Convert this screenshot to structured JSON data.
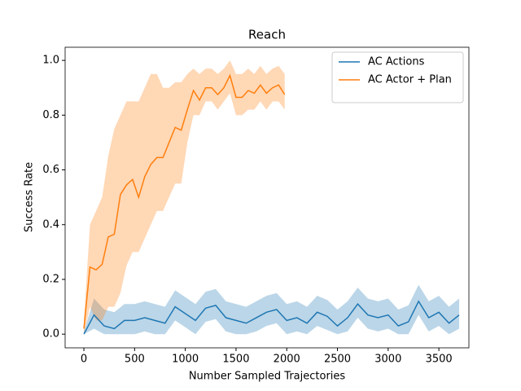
{
  "chart_data": {
    "type": "line",
    "title": "Reach",
    "x_label": "Number Sampled Trajectories",
    "y_label": "Success Rate",
    "xlim": [
      -185,
      3796
    ],
    "ylim": [
      -0.05,
      1.048
    ],
    "xticks": [
      0,
      500,
      1000,
      1500,
      2000,
      2500,
      3000,
      3500
    ],
    "yticks": [
      {
        "value": 0,
        "label": "0.0"
      },
      0.2,
      0.4,
      0.6,
      0.8,
      {
        "value": 1,
        "label": "1.0"
      }
    ],
    "legend": "upper right",
    "grid": false,
    "series": [
      {
        "name": "AC Actions",
        "color": "#1f77b4",
        "x": [
          0,
          100,
          200,
          300,
          400,
          500,
          600,
          700,
          800,
          900,
          1000,
          1100,
          1200,
          1300,
          1400,
          1500,
          1600,
          1700,
          1800,
          1900,
          2000,
          2100,
          2200,
          2300,
          2400,
          2500,
          2600,
          2700,
          2800,
          2900,
          3000,
          3100,
          3200,
          3300,
          3400,
          3500,
          3600,
          3700
        ],
        "values": [
          0,
          0.07,
          0.03,
          0.02,
          0.05,
          0.05,
          0.06,
          0.05,
          0.04,
          0.1,
          0.075,
          0.05,
          0.095,
          0.105,
          0.06,
          0.05,
          0.04,
          0.06,
          0.08,
          0.09,
          0.05,
          0.06,
          0.04,
          0.08,
          0.065,
          0.03,
          0.06,
          0.11,
          0.07,
          0.06,
          0.07,
          0.03,
          0.045,
          0.12,
          0.06,
          0.08,
          0.04,
          0.07
        ],
        "band_lower": [
          0,
          0.02,
          0,
          0,
          0,
          0,
          0.01,
          0,
          0,
          0.05,
          0.025,
          0,
          0.045,
          0.055,
          0.01,
          0,
          0,
          0.01,
          0.03,
          0.04,
          0,
          0.01,
          0,
          0.03,
          0.015,
          0,
          0.01,
          0.06,
          0.02,
          0.01,
          0.02,
          0,
          0,
          0.07,
          0.01,
          0.03,
          0,
          0.02
        ],
        "band_upper": [
          0.01,
          0.13,
          0.09,
          0.08,
          0.11,
          0.11,
          0.12,
          0.11,
          0.1,
          0.16,
          0.135,
          0.11,
          0.155,
          0.165,
          0.12,
          0.11,
          0.1,
          0.12,
          0.14,
          0.15,
          0.11,
          0.12,
          0.1,
          0.14,
          0.125,
          0.09,
          0.12,
          0.17,
          0.13,
          0.12,
          0.13,
          0.09,
          0.105,
          0.18,
          0.12,
          0.14,
          0.1,
          0.13
        ]
      },
      {
        "name": "AC Actor + Plan",
        "color": "#ff7f0e",
        "x": [
          0,
          60,
          120,
          180,
          240,
          300,
          360,
          420,
          480,
          540,
          600,
          660,
          720,
          780,
          840,
          900,
          960,
          1020,
          1080,
          1140,
          1200,
          1260,
          1320,
          1380,
          1440,
          1500,
          1560,
          1620,
          1680,
          1740,
          1800,
          1860,
          1920,
          1980
        ],
        "values": [
          0.02,
          0.245,
          0.235,
          0.255,
          0.355,
          0.365,
          0.51,
          0.545,
          0.565,
          0.5,
          0.575,
          0.62,
          0.645,
          0.645,
          0.7,
          0.755,
          0.745,
          0.82,
          0.89,
          0.855,
          0.9,
          0.9,
          0.875,
          0.9,
          0.945,
          0.865,
          0.865,
          0.89,
          0.88,
          0.91,
          0.88,
          0.9,
          0.91,
          0.875
        ],
        "band_lower": [
          0,
          0.1,
          0.05,
          0.05,
          0.1,
          0.1,
          0.15,
          0.25,
          0.3,
          0.3,
          0.35,
          0.4,
          0.45,
          0.45,
          0.5,
          0.55,
          0.55,
          0.7,
          0.8,
          0.8,
          0.85,
          0.85,
          0.82,
          0.85,
          0.88,
          0.8,
          0.8,
          0.82,
          0.82,
          0.85,
          0.82,
          0.85,
          0.85,
          0.82
        ],
        "band_upper": [
          0.05,
          0.4,
          0.45,
          0.5,
          0.65,
          0.75,
          0.8,
          0.85,
          0.85,
          0.85,
          0.9,
          0.95,
          0.95,
          0.9,
          0.9,
          0.92,
          0.92,
          0.95,
          0.97,
          0.95,
          0.97,
          0.97,
          0.95,
          0.97,
          1.0,
          0.95,
          0.95,
          0.97,
          0.95,
          0.98,
          0.95,
          0.97,
          0.98,
          0.95
        ]
      }
    ]
  }
}
